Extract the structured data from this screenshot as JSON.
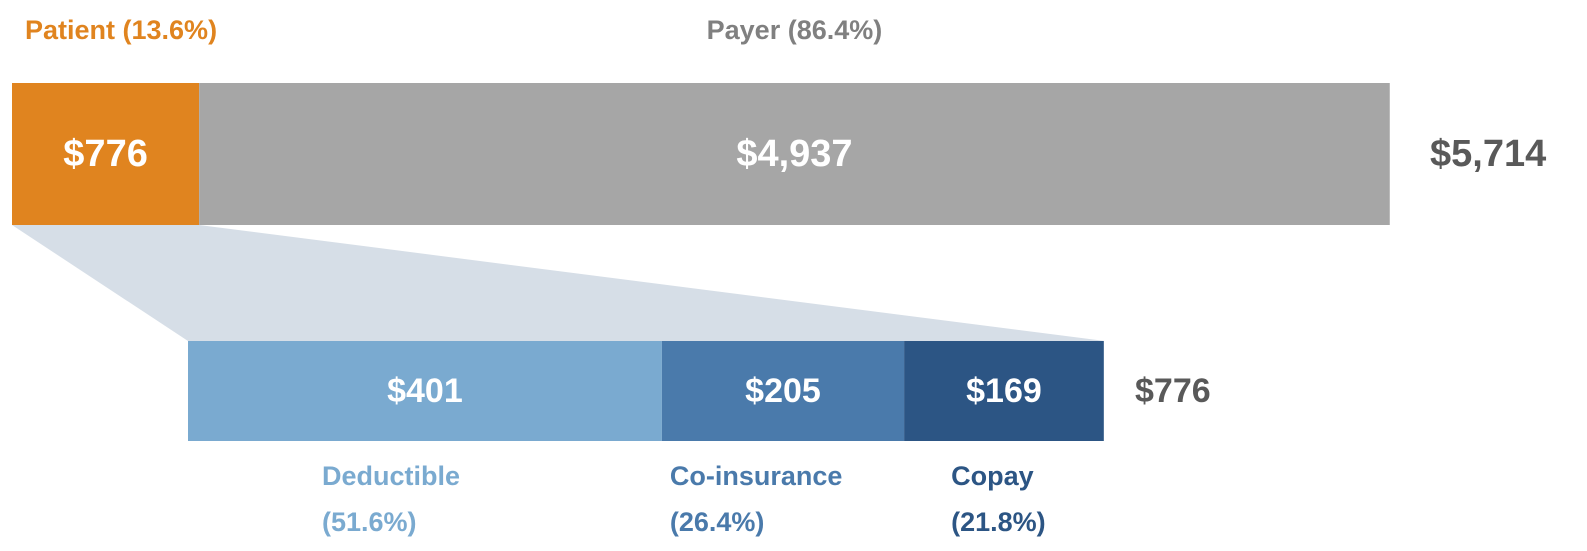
{
  "chart_data": [
    {
      "type": "stacked-bar",
      "orientation": "horizontal",
      "legend": "top",
      "xlim": [
        0,
        5714
      ],
      "total": 5714,
      "total_label": "$5,714",
      "series": [
        {
          "name": "Patient (13.6%)",
          "color": "#e0841f",
          "values": [
            776
          ],
          "value_labels": [
            "$776"
          ]
        },
        {
          "name": "Payer (86.4%)",
          "color": "#a6a6a6",
          "values": [
            4937
          ],
          "value_labels": [
            "$4,937"
          ]
        }
      ]
    },
    {
      "type": "stacked-bar",
      "orientation": "horizontal",
      "legend": "bottom",
      "xlim": [
        0,
        776
      ],
      "total": 776,
      "total_label": "$776",
      "series": [
        {
          "name": "Deductible",
          "share_label": "(51.6%)",
          "color": "#7aaad0",
          "values": [
            401
          ],
          "value_labels": [
            "$401"
          ]
        },
        {
          "name": "Co-insurance",
          "share_label": "(26.4%)",
          "color": "#4a7aab",
          "values": [
            205
          ],
          "value_labels": [
            "$205"
          ]
        },
        {
          "name": "Copay",
          "share_label": "(21.8%)",
          "color": "#2c5584",
          "values": [
            169
          ],
          "value_labels": [
            "$169"
          ]
        }
      ]
    }
  ]
}
